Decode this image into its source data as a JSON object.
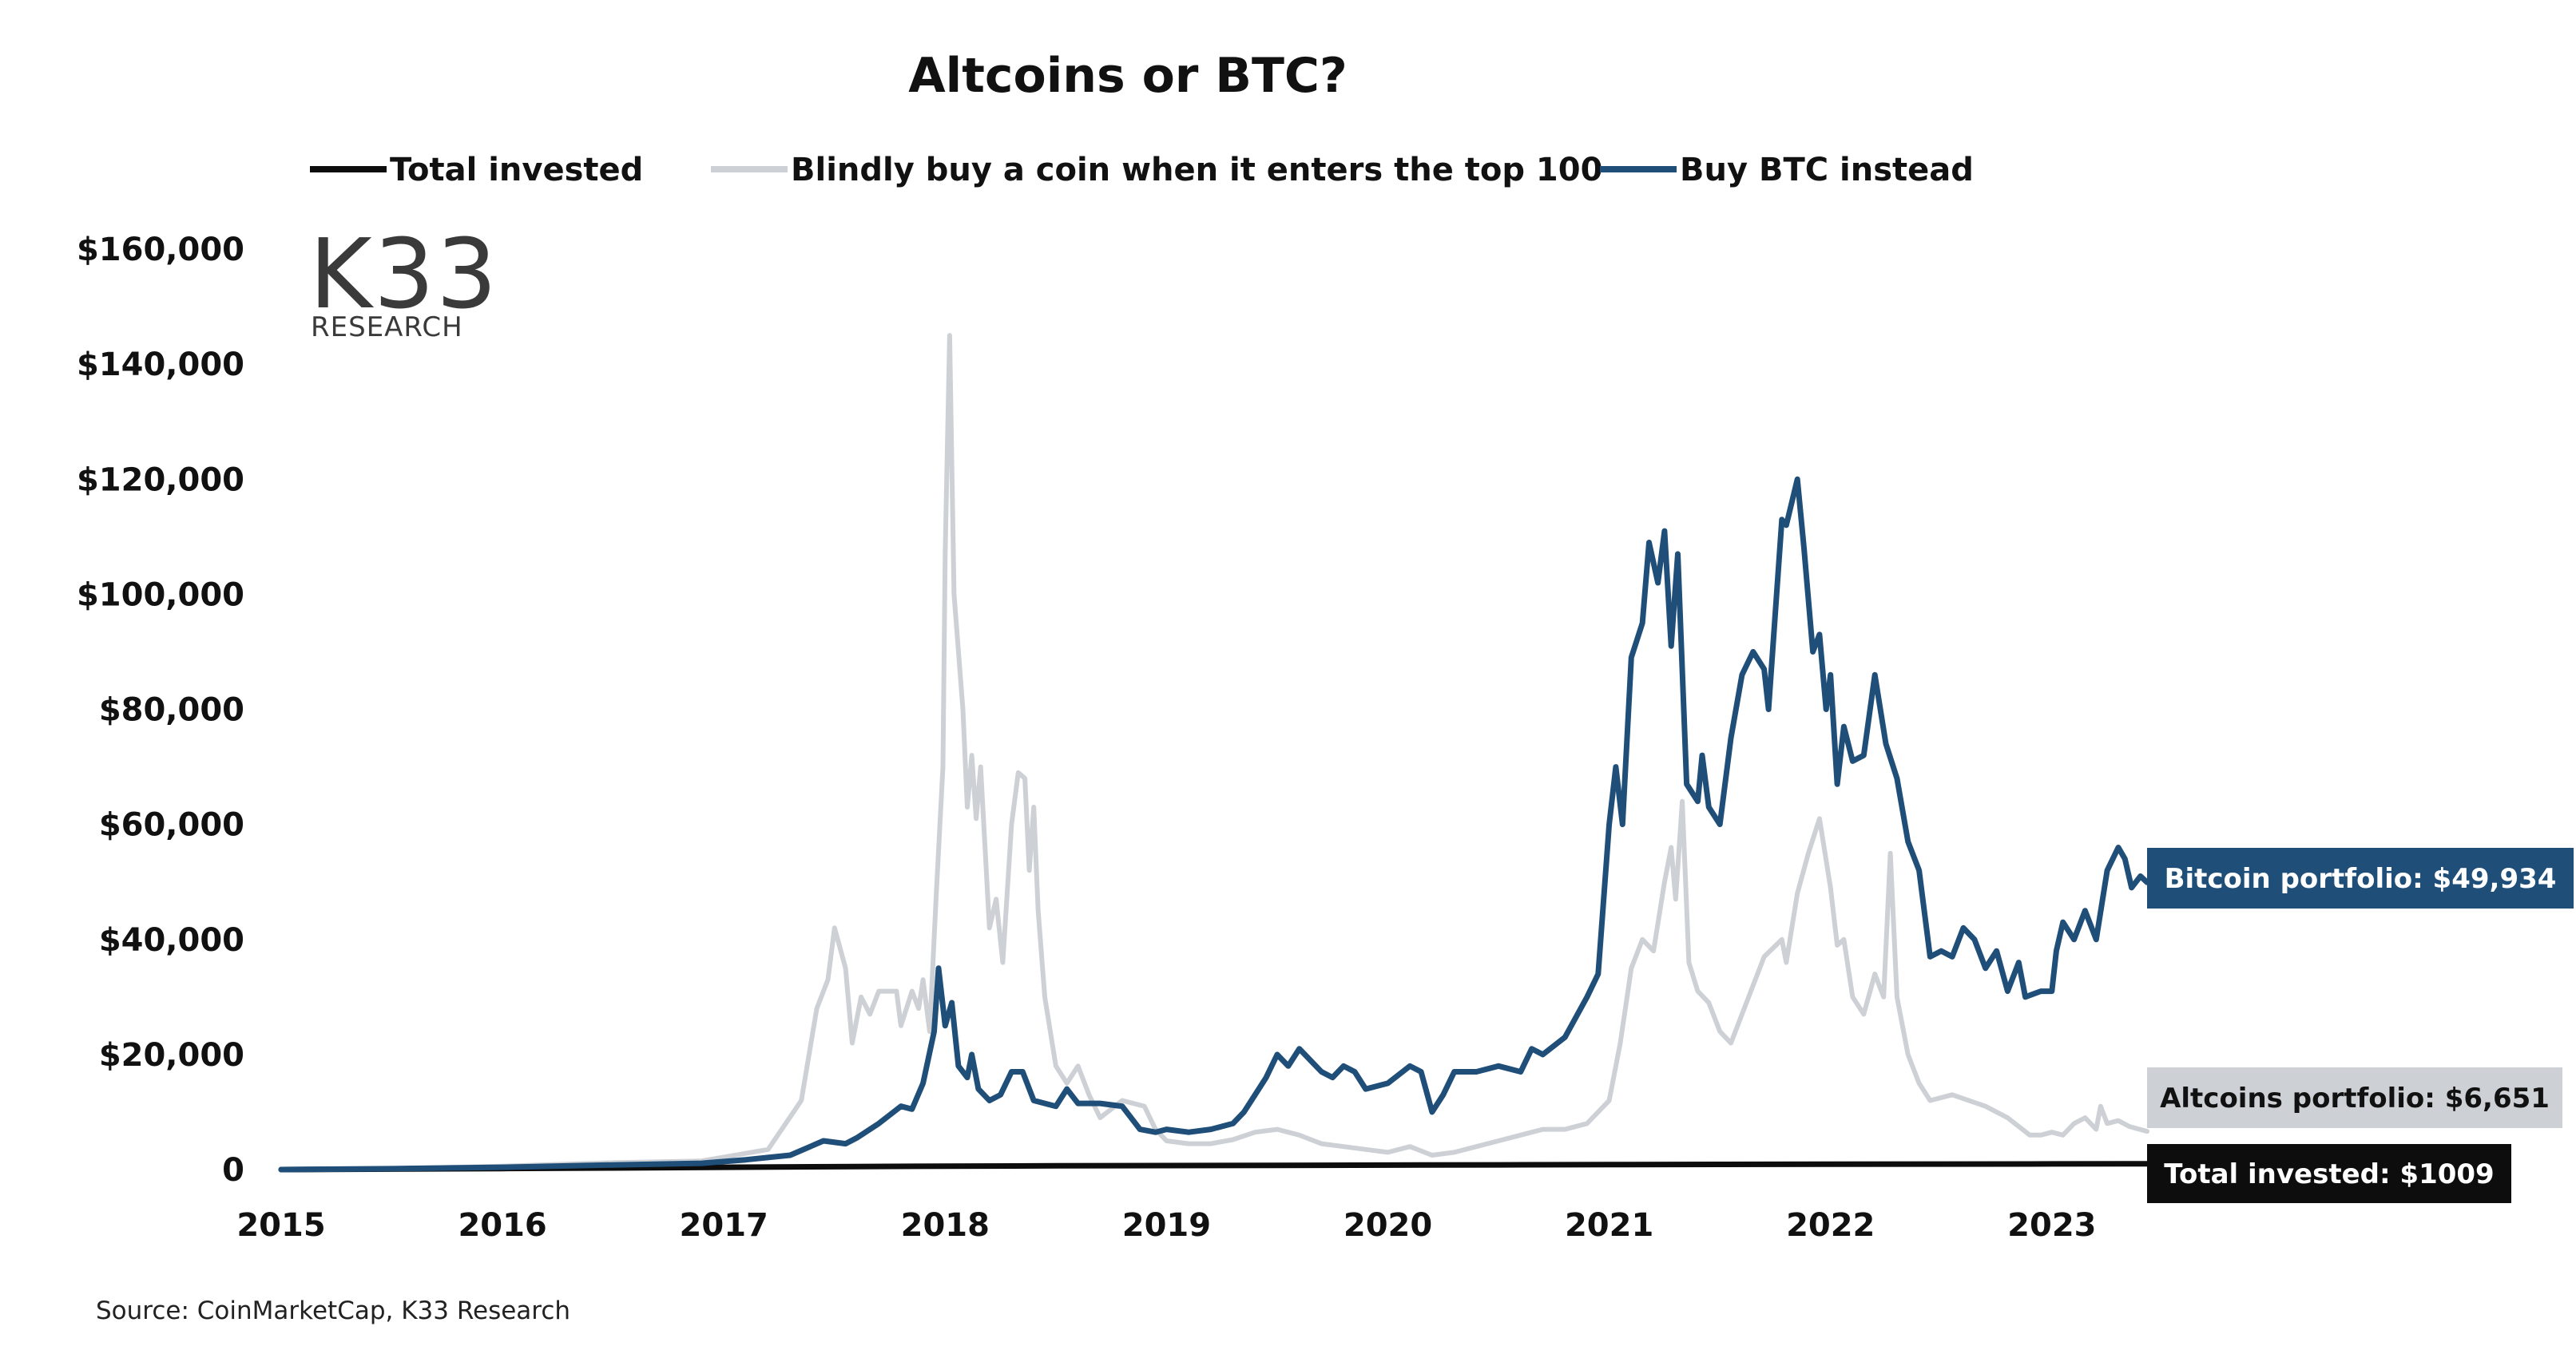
{
  "chart_data": {
    "type": "line",
    "title": "Altcoins or BTC?",
    "source": "Source: CoinMarketCap, K33 Research",
    "logo": {
      "main": "K33",
      "sub": "RESEARCH"
    },
    "xlim": [
      2015,
      2023.43
    ],
    "ylim": [
      0,
      160000
    ],
    "x_ticks": [
      {
        "value": 2015,
        "label": "2015"
      },
      {
        "value": 2016,
        "label": "2016"
      },
      {
        "value": 2017,
        "label": "2017"
      },
      {
        "value": 2018,
        "label": "2018"
      },
      {
        "value": 2019,
        "label": "2019"
      },
      {
        "value": 2020,
        "label": "2020"
      },
      {
        "value": 2021,
        "label": "2021"
      },
      {
        "value": 2022,
        "label": "2022"
      },
      {
        "value": 2023,
        "label": "2023"
      }
    ],
    "y_ticks": [
      {
        "value": 0,
        "label": "0"
      },
      {
        "value": 20000,
        "label": "$20,000"
      },
      {
        "value": 40000,
        "label": "$40,000"
      },
      {
        "value": 60000,
        "label": "$60,000"
      },
      {
        "value": 80000,
        "label": "$80,000"
      },
      {
        "value": 100000,
        "label": "$100,000"
      },
      {
        "value": 120000,
        "label": "$120,000"
      },
      {
        "value": 140000,
        "label": "$140,000"
      },
      {
        "value": 160000,
        "label": "$160,000"
      }
    ],
    "grid": false,
    "legend_position": "top",
    "series": [
      {
        "name": "Total invested",
        "color": "#0d0d0d",
        "points": [
          [
            2015,
            0
          ],
          [
            2015.5,
            80
          ],
          [
            2016,
            180
          ],
          [
            2016.5,
            280
          ],
          [
            2017,
            400
          ],
          [
            2017.5,
            500
          ],
          [
            2018,
            600
          ],
          [
            2018.5,
            650
          ],
          [
            2019,
            700
          ],
          [
            2019.5,
            740
          ],
          [
            2020,
            780
          ],
          [
            2020.5,
            820
          ],
          [
            2021,
            860
          ],
          [
            2021.5,
            900
          ],
          [
            2022,
            930
          ],
          [
            2022.5,
            960
          ],
          [
            2023,
            990
          ],
          [
            2023.43,
            1009
          ]
        ]
      },
      {
        "name": "Blindly buy a coin when it enters the top 100",
        "color": "#cdd1d6",
        "points": [
          [
            2015,
            0
          ],
          [
            2015.5,
            150
          ],
          [
            2016,
            600
          ],
          [
            2016.5,
            1200
          ],
          [
            2016.9,
            1500
          ],
          [
            2017.2,
            3500
          ],
          [
            2017.35,
            12000
          ],
          [
            2017.42,
            28000
          ],
          [
            2017.47,
            33000
          ],
          [
            2017.5,
            42000
          ],
          [
            2017.55,
            35000
          ],
          [
            2017.58,
            22000
          ],
          [
            2017.62,
            30000
          ],
          [
            2017.66,
            27000
          ],
          [
            2017.7,
            31000
          ],
          [
            2017.78,
            31000
          ],
          [
            2017.8,
            25000
          ],
          [
            2017.85,
            31000
          ],
          [
            2017.88,
            28000
          ],
          [
            2017.9,
            33000
          ],
          [
            2017.93,
            24000
          ],
          [
            2017.96,
            48000
          ],
          [
            2017.99,
            70000
          ],
          [
            2018.0,
            107000
          ],
          [
            2018.02,
            145000
          ],
          [
            2018.04,
            100000
          ],
          [
            2018.08,
            80000
          ],
          [
            2018.1,
            63000
          ],
          [
            2018.12,
            72000
          ],
          [
            2018.14,
            61000
          ],
          [
            2018.16,
            70000
          ],
          [
            2018.2,
            42000
          ],
          [
            2018.23,
            47000
          ],
          [
            2018.26,
            36000
          ],
          [
            2018.3,
            60000
          ],
          [
            2018.33,
            69000
          ],
          [
            2018.36,
            68000
          ],
          [
            2018.38,
            52000
          ],
          [
            2018.4,
            63000
          ],
          [
            2018.42,
            45000
          ],
          [
            2018.45,
            30000
          ],
          [
            2018.5,
            18000
          ],
          [
            2018.55,
            15000
          ],
          [
            2018.6,
            18000
          ],
          [
            2018.65,
            13000
          ],
          [
            2018.7,
            9000
          ],
          [
            2018.8,
            12000
          ],
          [
            2018.9,
            11000
          ],
          [
            2018.95,
            7000
          ],
          [
            2019.0,
            5000
          ],
          [
            2019.1,
            4500
          ],
          [
            2019.2,
            4500
          ],
          [
            2019.3,
            5200
          ],
          [
            2019.4,
            6500
          ],
          [
            2019.5,
            7000
          ],
          [
            2019.6,
            6000
          ],
          [
            2019.7,
            4500
          ],
          [
            2019.8,
            4000
          ],
          [
            2019.9,
            3500
          ],
          [
            2020.0,
            3000
          ],
          [
            2020.1,
            4000
          ],
          [
            2020.2,
            2500
          ],
          [
            2020.3,
            3000
          ],
          [
            2020.4,
            4000
          ],
          [
            2020.5,
            5000
          ],
          [
            2020.6,
            6000
          ],
          [
            2020.7,
            7000
          ],
          [
            2020.8,
            7000
          ],
          [
            2020.9,
            8000
          ],
          [
            2021.0,
            12000
          ],
          [
            2021.05,
            22000
          ],
          [
            2021.1,
            35000
          ],
          [
            2021.15,
            40000
          ],
          [
            2021.2,
            38000
          ],
          [
            2021.25,
            50000
          ],
          [
            2021.28,
            56000
          ],
          [
            2021.3,
            47000
          ],
          [
            2021.33,
            64000
          ],
          [
            2021.36,
            36000
          ],
          [
            2021.4,
            31000
          ],
          [
            2021.45,
            29000
          ],
          [
            2021.5,
            24000
          ],
          [
            2021.55,
            22000
          ],
          [
            2021.6,
            27000
          ],
          [
            2021.7,
            37000
          ],
          [
            2021.78,
            40000
          ],
          [
            2021.8,
            36000
          ],
          [
            2021.85,
            48000
          ],
          [
            2021.9,
            55000
          ],
          [
            2021.95,
            61000
          ],
          [
            2022.0,
            49000
          ],
          [
            2022.03,
            39000
          ],
          [
            2022.06,
            40000
          ],
          [
            2022.1,
            30000
          ],
          [
            2022.15,
            27000
          ],
          [
            2022.2,
            34000
          ],
          [
            2022.24,
            30000
          ],
          [
            2022.27,
            55000
          ],
          [
            2022.3,
            30000
          ],
          [
            2022.35,
            20000
          ],
          [
            2022.4,
            15000
          ],
          [
            2022.45,
            12000
          ],
          [
            2022.55,
            13000
          ],
          [
            2022.7,
            11000
          ],
          [
            2022.8,
            9000
          ],
          [
            2022.9,
            6000
          ],
          [
            2022.95,
            6000
          ],
          [
            2023.0,
            6500
          ],
          [
            2023.05,
            6000
          ],
          [
            2023.1,
            8000
          ],
          [
            2023.15,
            9000
          ],
          [
            2023.2,
            7000
          ],
          [
            2023.22,
            11000
          ],
          [
            2023.25,
            8000
          ],
          [
            2023.3,
            8500
          ],
          [
            2023.35,
            7500
          ],
          [
            2023.43,
            6651
          ]
        ]
      },
      {
        "name": "Buy BTC instead",
        "color": "#1f4e79",
        "points": [
          [
            2015,
            0
          ],
          [
            2015.5,
            150
          ],
          [
            2016,
            400
          ],
          [
            2016.5,
            800
          ],
          [
            2016.9,
            1100
          ],
          [
            2017.1,
            1700
          ],
          [
            2017.3,
            2500
          ],
          [
            2017.45,
            5000
          ],
          [
            2017.55,
            4500
          ],
          [
            2017.6,
            5500
          ],
          [
            2017.7,
            8000
          ],
          [
            2017.8,
            11000
          ],
          [
            2017.85,
            10500
          ],
          [
            2017.9,
            15000
          ],
          [
            2017.95,
            24000
          ],
          [
            2017.97,
            35000
          ],
          [
            2018.0,
            25000
          ],
          [
            2018.03,
            29000
          ],
          [
            2018.06,
            18000
          ],
          [
            2018.1,
            16000
          ],
          [
            2018.12,
            20000
          ],
          [
            2018.15,
            14000
          ],
          [
            2018.2,
            12000
          ],
          [
            2018.25,
            13000
          ],
          [
            2018.3,
            17000
          ],
          [
            2018.35,
            17000
          ],
          [
            2018.4,
            12000
          ],
          [
            2018.5,
            11000
          ],
          [
            2018.55,
            14000
          ],
          [
            2018.6,
            11500
          ],
          [
            2018.7,
            11500
          ],
          [
            2018.8,
            11000
          ],
          [
            2018.88,
            7000
          ],
          [
            2018.95,
            6500
          ],
          [
            2019.0,
            7000
          ],
          [
            2019.1,
            6500
          ],
          [
            2019.2,
            7000
          ],
          [
            2019.3,
            8000
          ],
          [
            2019.35,
            10000
          ],
          [
            2019.4,
            13000
          ],
          [
            2019.45,
            16000
          ],
          [
            2019.5,
            20000
          ],
          [
            2019.55,
            18000
          ],
          [
            2019.6,
            21000
          ],
          [
            2019.65,
            19000
          ],
          [
            2019.7,
            17000
          ],
          [
            2019.75,
            16000
          ],
          [
            2019.8,
            18000
          ],
          [
            2019.85,
            17000
          ],
          [
            2019.9,
            14000
          ],
          [
            2020.0,
            15000
          ],
          [
            2020.1,
            18000
          ],
          [
            2020.15,
            17000
          ],
          [
            2020.2,
            10000
          ],
          [
            2020.25,
            13000
          ],
          [
            2020.3,
            17000
          ],
          [
            2020.4,
            17000
          ],
          [
            2020.5,
            18000
          ],
          [
            2020.6,
            17000
          ],
          [
            2020.65,
            21000
          ],
          [
            2020.7,
            20000
          ],
          [
            2020.8,
            23000
          ],
          [
            2020.9,
            30000
          ],
          [
            2020.95,
            34000
          ],
          [
            2021.0,
            60000
          ],
          [
            2021.03,
            70000
          ],
          [
            2021.06,
            60000
          ],
          [
            2021.1,
            89000
          ],
          [
            2021.15,
            95000
          ],
          [
            2021.18,
            109000
          ],
          [
            2021.22,
            102000
          ],
          [
            2021.25,
            111000
          ],
          [
            2021.28,
            91000
          ],
          [
            2021.31,
            107000
          ],
          [
            2021.35,
            67000
          ],
          [
            2021.4,
            64000
          ],
          [
            2021.42,
            72000
          ],
          [
            2021.45,
            63000
          ],
          [
            2021.5,
            60000
          ],
          [
            2021.55,
            75000
          ],
          [
            2021.6,
            86000
          ],
          [
            2021.65,
            90000
          ],
          [
            2021.7,
            87000
          ],
          [
            2021.72,
            80000
          ],
          [
            2021.78,
            113000
          ],
          [
            2021.8,
            112000
          ],
          [
            2021.85,
            120000
          ],
          [
            2021.88,
            108000
          ],
          [
            2021.92,
            90000
          ],
          [
            2021.95,
            93000
          ],
          [
            2021.98,
            80000
          ],
          [
            2022.0,
            86000
          ],
          [
            2022.03,
            67000
          ],
          [
            2022.06,
            77000
          ],
          [
            2022.1,
            71000
          ],
          [
            2022.15,
            72000
          ],
          [
            2022.2,
            86000
          ],
          [
            2022.25,
            74000
          ],
          [
            2022.3,
            68000
          ],
          [
            2022.35,
            57000
          ],
          [
            2022.4,
            52000
          ],
          [
            2022.45,
            37000
          ],
          [
            2022.5,
            38000
          ],
          [
            2022.55,
            37000
          ],
          [
            2022.6,
            42000
          ],
          [
            2022.65,
            40000
          ],
          [
            2022.7,
            35000
          ],
          [
            2022.75,
            38000
          ],
          [
            2022.8,
            31000
          ],
          [
            2022.85,
            36000
          ],
          [
            2022.88,
            30000
          ],
          [
            2022.95,
            31000
          ],
          [
            2023.0,
            31000
          ],
          [
            2023.02,
            38000
          ],
          [
            2023.05,
            43000
          ],
          [
            2023.1,
            40000
          ],
          [
            2023.15,
            45000
          ],
          [
            2023.2,
            40000
          ],
          [
            2023.25,
            52000
          ],
          [
            2023.3,
            56000
          ],
          [
            2023.33,
            54000
          ],
          [
            2023.36,
            49000
          ],
          [
            2023.4,
            51000
          ],
          [
            2023.43,
            49934
          ]
        ]
      }
    ],
    "end_labels": [
      {
        "text": "Bitcoin portfolio: $49,934",
        "series": "Buy BTC instead",
        "bg": "#1f4e79",
        "fg": "#ffffff"
      },
      {
        "text": "Altcoins portfolio: $6,651",
        "series": "Blindly buy a coin when it enters the top 100",
        "bg": "#cdd1d6",
        "fg": "#111111"
      },
      {
        "text": "Total invested: $1009",
        "series": "Total invested",
        "bg": "#0d0d0d",
        "fg": "#ffffff"
      }
    ]
  }
}
